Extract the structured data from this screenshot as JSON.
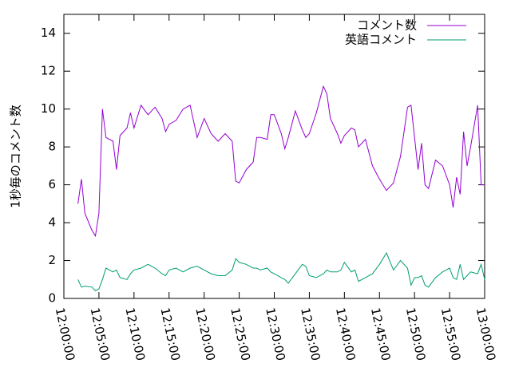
{
  "chart_data": {
    "type": "line",
    "ylabel": "1秒毎のコメント数",
    "x": [
      "12:02:00",
      "12:02:30",
      "12:03:00",
      "12:04:00",
      "12:04:30",
      "12:05:00",
      "12:05:30",
      "12:06:00",
      "12:07:00",
      "12:07:30",
      "12:08:00",
      "12:09:00",
      "12:09:30",
      "12:10:00",
      "12:11:00",
      "12:12:00",
      "12:13:00",
      "12:14:00",
      "12:14:30",
      "12:15:00",
      "12:16:00",
      "12:17:00",
      "12:18:00",
      "12:19:00",
      "12:20:00",
      "12:21:00",
      "12:22:00",
      "12:23:00",
      "12:24:00",
      "12:24:30",
      "12:25:00",
      "12:26:00",
      "12:27:00",
      "12:27:30",
      "12:28:00",
      "12:29:00",
      "12:29:30",
      "12:30:00",
      "12:31:00",
      "12:31:30",
      "12:32:00",
      "12:33:00",
      "12:34:00",
      "12:34:30",
      "12:35:00",
      "12:36:00",
      "12:37:00",
      "12:37:30",
      "12:38:00",
      "12:39:00",
      "12:39:30",
      "12:40:00",
      "12:41:00",
      "12:41:30",
      "12:42:00",
      "12:43:00",
      "12:44:00",
      "12:45:00",
      "12:46:00",
      "12:47:00",
      "12:48:00",
      "12:49:00",
      "12:49:30",
      "12:50:00",
      "12:50:30",
      "12:51:00",
      "12:51:30",
      "12:52:00",
      "12:53:00",
      "12:54:00",
      "12:55:00",
      "12:55:30",
      "12:56:00",
      "12:56:30",
      "12:57:00",
      "12:57:30",
      "12:58:00",
      "12:59:00",
      "12:59:30",
      "13:00:00"
    ],
    "series": [
      {
        "name": "コメント数",
        "color": "#9400d3",
        "values": [
          5.0,
          6.3,
          4.5,
          3.6,
          3.3,
          4.5,
          10.0,
          8.5,
          8.3,
          6.8,
          8.6,
          9.0,
          9.8,
          9.0,
          10.2,
          9.7,
          10.1,
          9.5,
          8.8,
          9.2,
          9.4,
          10.0,
          10.2,
          8.5,
          9.5,
          8.7,
          8.3,
          8.7,
          8.3,
          6.2,
          6.1,
          6.8,
          7.2,
          8.5,
          8.5,
          8.4,
          9.7,
          9.7,
          8.7,
          7.9,
          8.5,
          9.9,
          8.9,
          8.5,
          8.7,
          9.8,
          11.2,
          10.8,
          9.5,
          8.7,
          8.2,
          8.6,
          9.0,
          8.9,
          8.0,
          8.4,
          7.0,
          6.3,
          5.7,
          6.1,
          7.5,
          10.1,
          10.2,
          8.5,
          6.8,
          8.2,
          6.0,
          5.8,
          7.3,
          7.0,
          6.0,
          4.8,
          6.4,
          5.5,
          8.8,
          7.0,
          8.0,
          10.2,
          6.0,
          6.0
        ]
      },
      {
        "name": "英語コメント",
        "color": "#009e73",
        "values": [
          1.0,
          0.6,
          0.65,
          0.6,
          0.4,
          0.5,
          1.0,
          1.6,
          1.4,
          1.5,
          1.1,
          1.0,
          1.3,
          1.5,
          1.6,
          1.8,
          1.6,
          1.3,
          1.2,
          1.5,
          1.6,
          1.4,
          1.6,
          1.7,
          1.5,
          1.3,
          1.2,
          1.2,
          1.5,
          2.1,
          1.9,
          1.8,
          1.6,
          1.6,
          1.5,
          1.6,
          1.4,
          1.3,
          1.1,
          1.0,
          0.8,
          1.3,
          1.8,
          1.7,
          1.2,
          1.1,
          1.3,
          1.5,
          1.4,
          1.4,
          1.5,
          1.9,
          1.4,
          1.5,
          0.9,
          1.1,
          1.3,
          1.8,
          2.4,
          1.5,
          2.0,
          1.6,
          0.7,
          1.1,
          1.1,
          1.2,
          0.7,
          0.6,
          1.1,
          1.4,
          1.6,
          1.1,
          1.0,
          1.8,
          1.0,
          1.2,
          1.4,
          1.3,
          1.8,
          1.0
        ]
      }
    ],
    "xlim": [
      "12:00:00",
      "13:00:00"
    ],
    "xticks": [
      "12:00:00",
      "12:05:00",
      "12:10:00",
      "12:15:00",
      "12:20:00",
      "12:25:00",
      "12:30:00",
      "12:35:00",
      "12:40:00",
      "12:45:00",
      "12:50:00",
      "12:55:00",
      "13:00:00"
    ],
    "ylim": [
      0,
      15
    ],
    "yticks": [
      0,
      2,
      4,
      6,
      8,
      10,
      12,
      14
    ],
    "legend": "top-right"
  }
}
